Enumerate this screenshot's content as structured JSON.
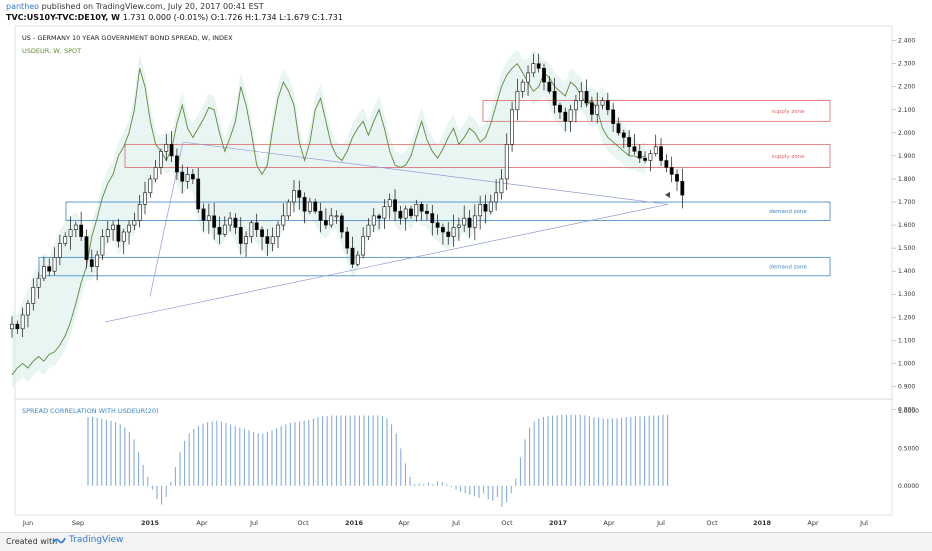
{
  "header": {
    "publisher": "pantheo",
    "published_text": "published on TradingView.com, July 20, 2017 00:41 EST",
    "symbol": "TVC:US10Y-TVC:DE10Y, W",
    "ohlc": "1.731 0.000 (-0.01%) O:1.726 H:1.734 L:1.679 C:1.731"
  },
  "footer": {
    "created_with": "Created with",
    "brand": "TradingView"
  },
  "colors": {
    "candle_up": "#ffffff",
    "candle_down": "#000000",
    "spread_line": "#5a8a3a",
    "supply_zone": "#e06666",
    "demand_zone": "#3d85c6",
    "cloud": "#d9efe9",
    "correlation_bars": "#7aa6da",
    "triangle": "#8f9cd6"
  },
  "chart_data": [
    {
      "type": "line",
      "title": "US - GERMANY 10 YEAR GOVERNMENT BOND SPREAD, W, INDEX",
      "legend": [
        "USDEUR, W, SPOT"
      ],
      "x_ticks": [
        "Jun",
        "Sep",
        "2015",
        "Apr",
        "Jul",
        "Oct",
        "2016",
        "Apr",
        "Jul",
        "Oct",
        "2017",
        "Apr",
        "Jul",
        "Oct",
        "2018",
        "Apr",
        "Jul"
      ],
      "ylim": [
        0.85,
        2.42
      ],
      "y_ticks": [
        "2.400",
        "2.300",
        "2.200",
        "2.100",
        "2.000",
        "1.900",
        "1.800",
        "1.700",
        "1.600",
        "1.500",
        "1.400",
        "1.300",
        "1.200",
        "1.100",
        "1.000",
        "0.900",
        "0.800"
      ],
      "last_value": "1.731",
      "spread_weekly": [
        1.17,
        1.15,
        1.21,
        1.26,
        1.33,
        1.37,
        1.42,
        1.4,
        1.46,
        1.52,
        1.55,
        1.58,
        1.6,
        1.55,
        1.45,
        1.42,
        1.47,
        1.55,
        1.58,
        1.6,
        1.53,
        1.57,
        1.6,
        1.62,
        1.69,
        1.74,
        1.8,
        1.85,
        1.92,
        1.95,
        1.9,
        1.83,
        1.79,
        1.82,
        1.8,
        1.67,
        1.62,
        1.64,
        1.59,
        1.56,
        1.6,
        1.63,
        1.59,
        1.52,
        1.55,
        1.61,
        1.58,
        1.55,
        1.52,
        1.55,
        1.6,
        1.64,
        1.7,
        1.75,
        1.72,
        1.66,
        1.7,
        1.66,
        1.62,
        1.6,
        1.64,
        1.64,
        1.57,
        1.5,
        1.43,
        1.47,
        1.55,
        1.6,
        1.64,
        1.63,
        1.68,
        1.71,
        1.66,
        1.63,
        1.67,
        1.64,
        1.69,
        1.66,
        1.65,
        1.61,
        1.59,
        1.57,
        1.55,
        1.59,
        1.6,
        1.63,
        1.59,
        1.64,
        1.69,
        1.66,
        1.7,
        1.74,
        1.8,
        1.95,
        2.1,
        2.18,
        2.22,
        2.26,
        2.3,
        2.28,
        2.22,
        2.18,
        2.12,
        2.09,
        2.05,
        2.1,
        2.14,
        2.18,
        2.13,
        2.08,
        2.12,
        2.14,
        2.1,
        2.04,
        2.0,
        1.98,
        1.94,
        1.92,
        1.89,
        1.88,
        1.91,
        1.94,
        1.88,
        1.85,
        1.82,
        1.79,
        1.73
      ],
      "usdeur_weekly": [
        0.95,
        0.98,
        1.0,
        0.98,
        1.01,
        1.03,
        1.01,
        1.04,
        1.05,
        1.08,
        1.12,
        1.18,
        1.26,
        1.35,
        1.42,
        1.55,
        1.63,
        1.72,
        1.78,
        1.82,
        1.9,
        1.94,
        2.0,
        2.1,
        2.28,
        2.2,
        2.05,
        1.95,
        1.92,
        1.88,
        1.93,
        2.04,
        2.12,
        2.02,
        1.98,
        2.02,
        2.06,
        2.11,
        2.1,
        2.0,
        1.92,
        1.98,
        2.05,
        2.2,
        2.12,
        2.0,
        1.86,
        1.82,
        1.86,
        2.02,
        2.15,
        2.22,
        2.18,
        2.12,
        1.96,
        1.88,
        1.96,
        2.1,
        2.15,
        2.05,
        1.95,
        1.9,
        1.88,
        1.92,
        1.98,
        2.02,
        2.05,
        1.99,
        2.05,
        2.1,
        2.02,
        1.92,
        1.86,
        1.85,
        1.86,
        1.9,
        1.98,
        2.05,
        1.97,
        1.92,
        1.89,
        1.93,
        1.98,
        2.02,
        1.95,
        1.98,
        2.02,
        2.0,
        1.96,
        1.98,
        2.04,
        2.12,
        2.2,
        2.25,
        2.28,
        2.3,
        2.26,
        2.22,
        2.18,
        2.2,
        2.26,
        2.24,
        2.2,
        2.18,
        2.16,
        2.22,
        2.2,
        2.16,
        2.12,
        2.14,
        2.1,
        2.02,
        1.98,
        1.96,
        1.94,
        1.92,
        1.9,
        1.9,
        1.89,
        1.9
      ],
      "zones": [
        {
          "label": "supply zone",
          "kind": "supply",
          "low": 2.05,
          "high": 2.14
        },
        {
          "label": "supply zone",
          "kind": "supply",
          "low": 1.85,
          "high": 1.95
        },
        {
          "label": "demand zone",
          "kind": "demand",
          "low": 1.62,
          "high": 1.7
        },
        {
          "label": "demand zone",
          "kind": "demand",
          "low": 1.38,
          "high": 1.46
        }
      ]
    },
    {
      "type": "bar",
      "title": "SPREAD CORRELATION WITH USDEUR(20)",
      "ylim": [
        -0.35,
        1.12
      ],
      "y_ticks": [
        "1.0000",
        "0.5000",
        "0.0000"
      ],
      "values": [
        0.92,
        0.92,
        0.91,
        0.9,
        0.88,
        0.87,
        0.85,
        0.82,
        0.78,
        0.72,
        0.62,
        0.45,
        0.28,
        0.12,
        -0.05,
        -0.18,
        -0.25,
        -0.15,
        0.05,
        0.25,
        0.45,
        0.6,
        0.7,
        0.76,
        0.8,
        0.83,
        0.85,
        0.86,
        0.87,
        0.86,
        0.84,
        0.82,
        0.8,
        0.78,
        0.76,
        0.74,
        0.72,
        0.7,
        0.7,
        0.72,
        0.74,
        0.77,
        0.8,
        0.82,
        0.84,
        0.85,
        0.86,
        0.87,
        0.88,
        0.9,
        0.92,
        0.93,
        0.93,
        0.94,
        0.94,
        0.94,
        0.94,
        0.94,
        0.94,
        0.94,
        0.94,
        0.94,
        0.94,
        0.94,
        0.93,
        0.9,
        0.82,
        0.7,
        0.5,
        0.3,
        0.12,
        0.02,
        0.03,
        0.02,
        0.04,
        0.02,
        0.06,
        0.05,
        0.02,
        -0.02,
        -0.05,
        -0.08,
        -0.1,
        -0.12,
        -0.14,
        -0.16,
        -0.1,
        -0.18,
        -0.2,
        -0.15,
        -0.28,
        -0.22,
        -0.1,
        0.1,
        0.38,
        0.62,
        0.78,
        0.86,
        0.9,
        0.92,
        0.93,
        0.94,
        0.94,
        0.95,
        0.95,
        0.95,
        0.95,
        0.95,
        0.94,
        0.93,
        0.92,
        0.91,
        0.9,
        0.9,
        0.9,
        0.9,
        0.91,
        0.92,
        0.92,
        0.93,
        0.93,
        0.93,
        0.94,
        0.94,
        0.94,
        0.95,
        0.95
      ]
    }
  ]
}
